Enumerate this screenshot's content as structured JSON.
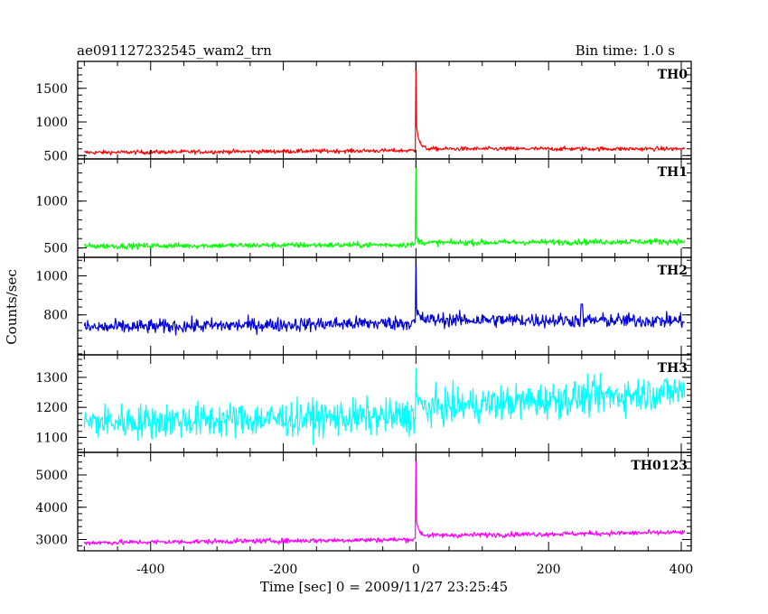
{
  "chart_data": {
    "type": "line",
    "title": "ae091127232545_wam2_trn",
    "bin_time": "Bin time: 1.0 s",
    "xlabel": "Time [sec] 0 = 2009/11/27 23:25:45",
    "ylabel": "Counts/sec",
    "xlim": [
      -510,
      415
    ],
    "x_ticks": [
      -400,
      -200,
      0,
      200,
      400
    ],
    "x_range": [
      -500,
      405
    ],
    "grid": false,
    "panels": [
      {
        "name": "TH0",
        "color": "#ff0000",
        "ylim": [
          450,
          1900
        ],
        "y_ticks": [
          500,
          1000,
          1500
        ],
        "baseline_start": 545,
        "baseline_end": 600,
        "pre_peak": 575,
        "noise": 22,
        "peak": 1900,
        "post_peak": 1050,
        "decay_to": 600,
        "bumps": []
      },
      {
        "name": "TH1",
        "color": "#00ff00",
        "ylim": [
          400,
          1450
        ],
        "y_ticks": [
          500,
          1000
        ],
        "baseline_start": 520,
        "baseline_end": 570,
        "pre_peak": 535,
        "noise": 22,
        "peak": 1450,
        "post_peak": 620,
        "decay_to": 555,
        "bumps": []
      },
      {
        "name": "TH2",
        "color": "#0000dd",
        "ylim": [
          595,
          1095
        ],
        "y_ticks": [
          800,
          1000
        ],
        "baseline_start": 735,
        "baseline_end": 770,
        "pre_peak": 760,
        "noise": 26,
        "peak": 1095,
        "post_peak": 830,
        "decay_to": 775,
        "bumps": [
          [
            250,
            855
          ]
        ]
      },
      {
        "name": "TH3",
        "color": "#00ffff",
        "ylim": [
          1050,
          1375
        ],
        "y_ticks": [
          1100,
          1200,
          1300
        ],
        "baseline_start": 1150,
        "baseline_end": 1255,
        "pre_peak": 1170,
        "noise": 42,
        "peak": 1330,
        "post_peak": 1240,
        "decay_to": 1195,
        "bumps": []
      },
      {
        "name": "TH0123",
        "color": "#ff00ff",
        "ylim": [
          2650,
          5700
        ],
        "y_ticks": [
          3000,
          4000,
          5000
        ],
        "baseline_start": 2900,
        "baseline_end": 3220,
        "pre_peak": 3000,
        "noise": 55,
        "peak": 5700,
        "post_peak": 3700,
        "decay_to": 3120,
        "bumps": []
      }
    ]
  }
}
